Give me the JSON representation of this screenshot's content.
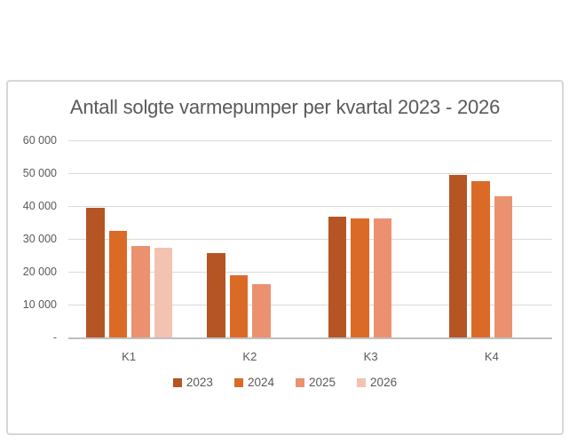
{
  "chart_data": {
    "type": "bar",
    "title": "Antall solgte varmepumper per kvartal 2023 - 2026",
    "categories": [
      "K1",
      "K2",
      "K3",
      "K4"
    ],
    "series": [
      {
        "name": "2023",
        "color": "#b55524",
        "values": [
          39500,
          25600,
          36700,
          49500
        ]
      },
      {
        "name": "2024",
        "color": "#dc6a27",
        "values": [
          32300,
          19000,
          36300,
          47500
        ]
      },
      {
        "name": "2025",
        "color": "#eb9170",
        "values": [
          27800,
          16300,
          36300,
          42900
        ]
      },
      {
        "name": "2026",
        "color": "#f4c2b0",
        "values": [
          27400,
          null,
          null,
          null
        ]
      }
    ],
    "ylim": [
      0,
      60000
    ],
    "ytick_interval": 10000,
    "ytick_labels": [
      "-",
      "10 000",
      "20 000",
      "30 000",
      "40 000",
      "50 000",
      "60 000"
    ],
    "xlabel": "",
    "ylabel": "",
    "grid": true,
    "legend_position": "bottom",
    "grid_color": "#d9d9d9",
    "axis_color": "#bfbfbf",
    "text_color": "#595959",
    "frame_border_color": "#d6d6d6"
  }
}
